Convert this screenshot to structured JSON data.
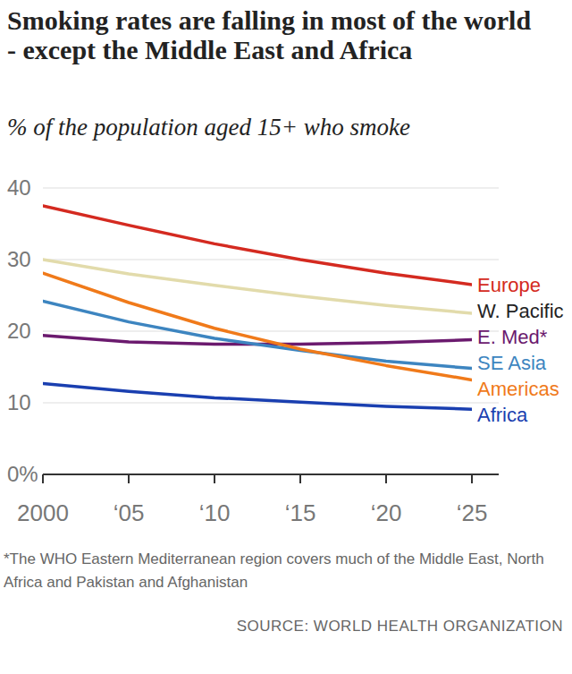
{
  "chart_data": {
    "type": "line",
    "title": "Smoking rates are falling in most of the world - except the Middle East and Africa",
    "subtitle": "% of the population aged 15+ who smoke",
    "x": [
      2000,
      2005,
      2010,
      2015,
      2020,
      2025
    ],
    "xlim": [
      2000,
      2025
    ],
    "xticks": [
      2000,
      {
        "value": 2005,
        "label": "‘05"
      },
      {
        "value": 2010,
        "label": "‘10"
      },
      {
        "value": 2015,
        "label": "‘15"
      },
      {
        "value": 2020,
        "label": "‘20"
      },
      {
        "value": 2025,
        "label": "‘25"
      }
    ],
    "ylim": [
      0,
      40
    ],
    "yticks": [
      {
        "value": 0,
        "label": "0%"
      },
      10,
      20,
      30,
      40
    ],
    "grid": true,
    "series": [
      {
        "name": "Europe",
        "color": "#d42a20",
        "values": [
          37.5,
          34.8,
          32.2,
          30.0,
          28.1,
          26.5
        ]
      },
      {
        "name": "W. Pacific",
        "color": "#e2dbab",
        "values": [
          30.0,
          28.0,
          26.4,
          24.9,
          23.6,
          22.5
        ]
      },
      {
        "name": "E. Med*",
        "color": "#6b1a6e",
        "values": [
          19.4,
          18.5,
          18.2,
          18.2,
          18.4,
          18.8
        ]
      },
      {
        "name": "SE Asia",
        "color": "#3d85c0",
        "values": [
          24.2,
          21.3,
          19.0,
          17.3,
          15.8,
          14.8
        ]
      },
      {
        "name": "Americas",
        "color": "#f07a1a",
        "values": [
          28.1,
          24.0,
          20.4,
          17.5,
          15.2,
          13.2
        ]
      },
      {
        "name": "Africa",
        "color": "#1a3fb0",
        "values": [
          12.7,
          11.6,
          10.7,
          10.1,
          9.5,
          9.1
        ]
      }
    ],
    "footnote": "*The WHO Eastern Mediterranean region covers much of the Middle East, North Africa and Pakistan and Afghanistan",
    "source": "SOURCE: WORLD HEALTH ORGANIZATION"
  }
}
